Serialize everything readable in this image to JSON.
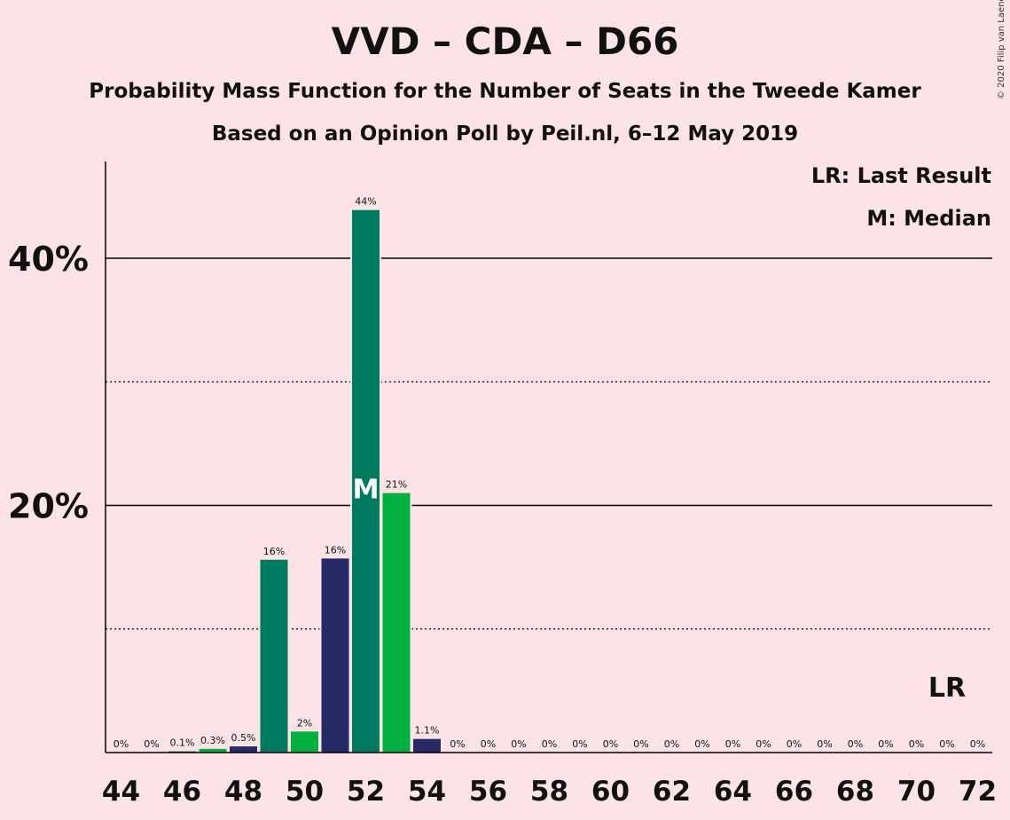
{
  "title": "VVD – CDA – D66",
  "subtitle": "Probability Mass Function for the Number of Seats in the Tweede Kamer",
  "subtitle2": "Based on an Opinion Poll by Peil.nl, 6–12 May 2019",
  "copyright": "© 2020 Filip van Laenen",
  "legend": {
    "last_result": "LR: Last Result",
    "median": "M: Median"
  },
  "colors": {
    "background": "#fce4e6",
    "teal": "#007a5e",
    "navy": "#262a66",
    "green": "#00b140"
  },
  "chart_data": {
    "type": "bar",
    "x": [
      44,
      45,
      46,
      47,
      48,
      49,
      50,
      51,
      52,
      53,
      54,
      55,
      56,
      57,
      58,
      59,
      60,
      61,
      62,
      63,
      64,
      65,
      66,
      67,
      68,
      69,
      70,
      71,
      72
    ],
    "values": [
      0,
      0,
      0.1,
      0.3,
      0.5,
      15.6,
      1.7,
      15.7,
      43.9,
      21.0,
      1.1,
      0,
      0,
      0,
      0,
      0,
      0,
      0,
      0,
      0,
      0,
      0,
      0,
      0,
      0,
      0,
      0,
      0,
      0
    ],
    "labels": [
      "0%",
      "0%",
      "0.1%",
      "0.3%",
      "0.5%",
      "16%",
      "2%",
      "16%",
      "44%",
      "21%",
      "1.1%",
      "0%",
      "0%",
      "0%",
      "0%",
      "0%",
      "0%",
      "0%",
      "0%",
      "0%",
      "0%",
      "0%",
      "0%",
      "0%",
      "0%",
      "0%",
      "0%",
      "0%",
      "0%"
    ],
    "bar_colors": [
      "teal",
      "teal",
      "teal",
      "green",
      "navy",
      "teal",
      "green",
      "navy",
      "teal",
      "green",
      "navy",
      "teal",
      "teal",
      "teal",
      "teal",
      "teal",
      "teal",
      "teal",
      "teal",
      "teal",
      "teal",
      "teal",
      "teal",
      "teal",
      "teal",
      "teal",
      "teal",
      "teal",
      "teal"
    ],
    "xticks": [
      "44",
      "46",
      "48",
      "50",
      "52",
      "54",
      "56",
      "58",
      "60",
      "62",
      "64",
      "66",
      "68",
      "70",
      "72"
    ],
    "yticks": [
      "20%",
      "40%"
    ],
    "ytick_values": [
      20,
      40
    ],
    "ylim": [
      0,
      48
    ],
    "dotted_grid": [
      10,
      30
    ],
    "median_seat": 52,
    "median_label": "M",
    "last_result_seat": 71,
    "last_result_label": "LR"
  }
}
